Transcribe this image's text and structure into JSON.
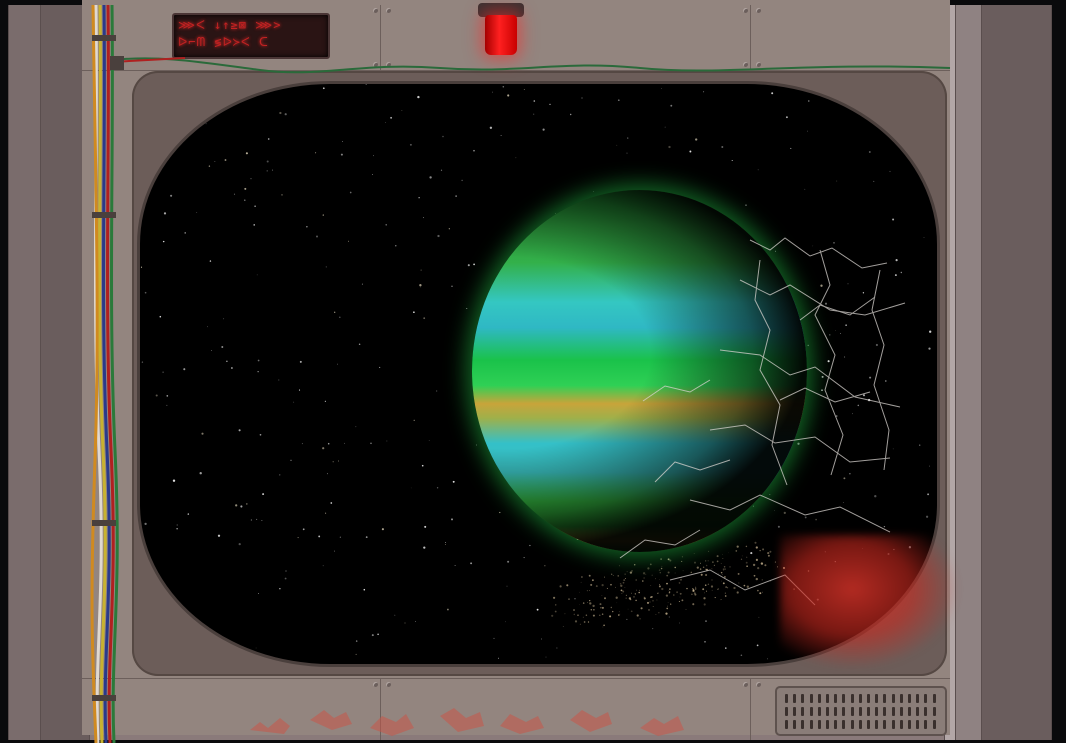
{
  "scene": {
    "colors": {
      "hull": "#93857f",
      "space": "#000000",
      "alarm": "#ff2020",
      "sign_glyph": "#c22222",
      "planet_glow": "#28dc50"
    },
    "sign": {
      "line1": "⋙ᐸ ↓↑≥⊠ ⋙>",
      "line2": "ᐅ⌐ᗰ ≶ᐅ≻ᐸ ᑕ"
    },
    "icons": {
      "alarm": "alarm-light-icon",
      "vent": "vent-grille-icon",
      "planet": "gas-giant-planet-icon"
    }
  }
}
